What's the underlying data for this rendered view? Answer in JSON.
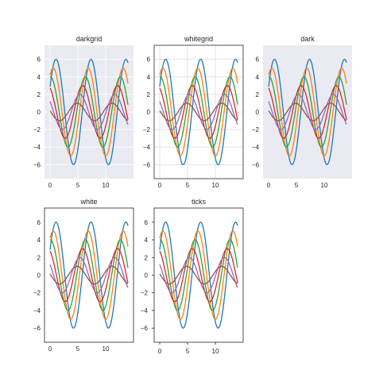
{
  "figure": {
    "panels": [
      "darkgrid",
      "whitegrid",
      "dark",
      "white",
      "ticks"
    ]
  },
  "chart_data": [
    {
      "type": "line",
      "title": "darkgrid",
      "style": "darkgrid",
      "background": "#eaeaf2",
      "grid": true,
      "grid_color": "#ffffff",
      "spines": false,
      "ticks_marks": false,
      "xlim": [
        -1,
        15
      ],
      "ylim": [
        -7.6,
        7.6
      ],
      "xticks": [
        0,
        5,
        10
      ],
      "yticks": [
        -6,
        -4,
        -2,
        0,
        2,
        4,
        6
      ],
      "x_range": [
        0,
        14
      ],
      "series": [
        {
          "formula": "sin(x + 0.5*1) * (7 - 1)",
          "amplitude": 6,
          "phase": 0.5,
          "color": "#1f77b4"
        },
        {
          "formula": "sin(x + 0.5*2) * (7 - 2)",
          "amplitude": 5,
          "phase": 1.0,
          "color": "#ff7f0e"
        },
        {
          "formula": "sin(x + 0.5*3) * (7 - 3)",
          "amplitude": 4,
          "phase": 1.5,
          "color": "#2ca02c"
        },
        {
          "formula": "sin(x + 0.5*4) * (7 - 4)",
          "amplitude": 3,
          "phase": 2.0,
          "color": "#d62728"
        },
        {
          "formula": "sin(x + 0.5*5) * (7 - 5)",
          "amplitude": 2,
          "phase": 2.5,
          "color": "#9467bd"
        },
        {
          "formula": "sin(x + 0.5*6) * (7 - 6)",
          "amplitude": 1,
          "phase": 3.0,
          "color": "#8c564b"
        }
      ]
    },
    {
      "type": "line",
      "title": "whitegrid",
      "style": "whitegrid",
      "background": "#ffffff",
      "grid": true,
      "grid_color": "#dddddd",
      "spines": true,
      "ticks_marks": false,
      "xlim": [
        -1,
        15
      ],
      "ylim": [
        -7.6,
        7.6
      ],
      "xticks": [
        0,
        5,
        10
      ],
      "yticks": [
        -6,
        -4,
        -2,
        0,
        2,
        4,
        6
      ],
      "x_range": [
        0,
        14
      ],
      "series": [
        {
          "amplitude": 6,
          "phase": 0.5,
          "color": "#1f77b4"
        },
        {
          "amplitude": 5,
          "phase": 1.0,
          "color": "#ff7f0e"
        },
        {
          "amplitude": 4,
          "phase": 1.5,
          "color": "#2ca02c"
        },
        {
          "amplitude": 3,
          "phase": 2.0,
          "color": "#d62728"
        },
        {
          "amplitude": 2,
          "phase": 2.5,
          "color": "#9467bd"
        },
        {
          "amplitude": 1,
          "phase": 3.0,
          "color": "#8c564b"
        }
      ]
    },
    {
      "type": "line",
      "title": "dark",
      "style": "dark",
      "background": "#eaeaf2",
      "grid": false,
      "spines": false,
      "ticks_marks": false,
      "xlim": [
        -1,
        15
      ],
      "ylim": [
        -7.6,
        7.6
      ],
      "xticks": [
        0,
        5,
        10
      ],
      "yticks": [
        -6,
        -4,
        -2,
        0,
        2,
        4,
        6
      ],
      "x_range": [
        0,
        14
      ],
      "series": [
        {
          "amplitude": 6,
          "phase": 0.5,
          "color": "#1f77b4"
        },
        {
          "amplitude": 5,
          "phase": 1.0,
          "color": "#ff7f0e"
        },
        {
          "amplitude": 4,
          "phase": 1.5,
          "color": "#2ca02c"
        },
        {
          "amplitude": 3,
          "phase": 2.0,
          "color": "#d62728"
        },
        {
          "amplitude": 2,
          "phase": 2.5,
          "color": "#9467bd"
        },
        {
          "amplitude": 1,
          "phase": 3.0,
          "color": "#8c564b"
        }
      ]
    },
    {
      "type": "line",
      "title": "white",
      "style": "white",
      "background": "#ffffff",
      "grid": false,
      "spines": true,
      "ticks_marks": false,
      "xlim": [
        -1,
        15
      ],
      "ylim": [
        -7.6,
        7.6
      ],
      "xticks": [
        0,
        5,
        10
      ],
      "yticks": [
        -6,
        -4,
        -2,
        0,
        2,
        4,
        6
      ],
      "x_range": [
        0,
        14
      ],
      "series": [
        {
          "amplitude": 6,
          "phase": 0.5,
          "color": "#1f77b4"
        },
        {
          "amplitude": 5,
          "phase": 1.0,
          "color": "#ff7f0e"
        },
        {
          "amplitude": 4,
          "phase": 1.5,
          "color": "#2ca02c"
        },
        {
          "amplitude": 3,
          "phase": 2.0,
          "color": "#d62728"
        },
        {
          "amplitude": 2,
          "phase": 2.5,
          "color": "#9467bd"
        },
        {
          "amplitude": 1,
          "phase": 3.0,
          "color": "#8c564b"
        }
      ]
    },
    {
      "type": "line",
      "title": "ticks",
      "style": "ticks",
      "background": "#ffffff",
      "grid": false,
      "spines": true,
      "ticks_marks": true,
      "xlim": [
        -1,
        15
      ],
      "ylim": [
        -7.6,
        7.6
      ],
      "xticks": [
        0,
        5,
        10
      ],
      "yticks": [
        -6,
        -4,
        -2,
        0,
        2,
        4,
        6
      ],
      "x_range": [
        0,
        14
      ],
      "series": [
        {
          "amplitude": 6,
          "phase": 0.5,
          "color": "#1f77b4"
        },
        {
          "amplitude": 5,
          "phase": 1.0,
          "color": "#ff7f0e"
        },
        {
          "amplitude": 4,
          "phase": 1.5,
          "color": "#2ca02c"
        },
        {
          "amplitude": 3,
          "phase": 2.0,
          "color": "#d62728"
        },
        {
          "amplitude": 2,
          "phase": 2.5,
          "color": "#9467bd"
        },
        {
          "amplitude": 1,
          "phase": 3.0,
          "color": "#8c564b"
        }
      ]
    }
  ]
}
